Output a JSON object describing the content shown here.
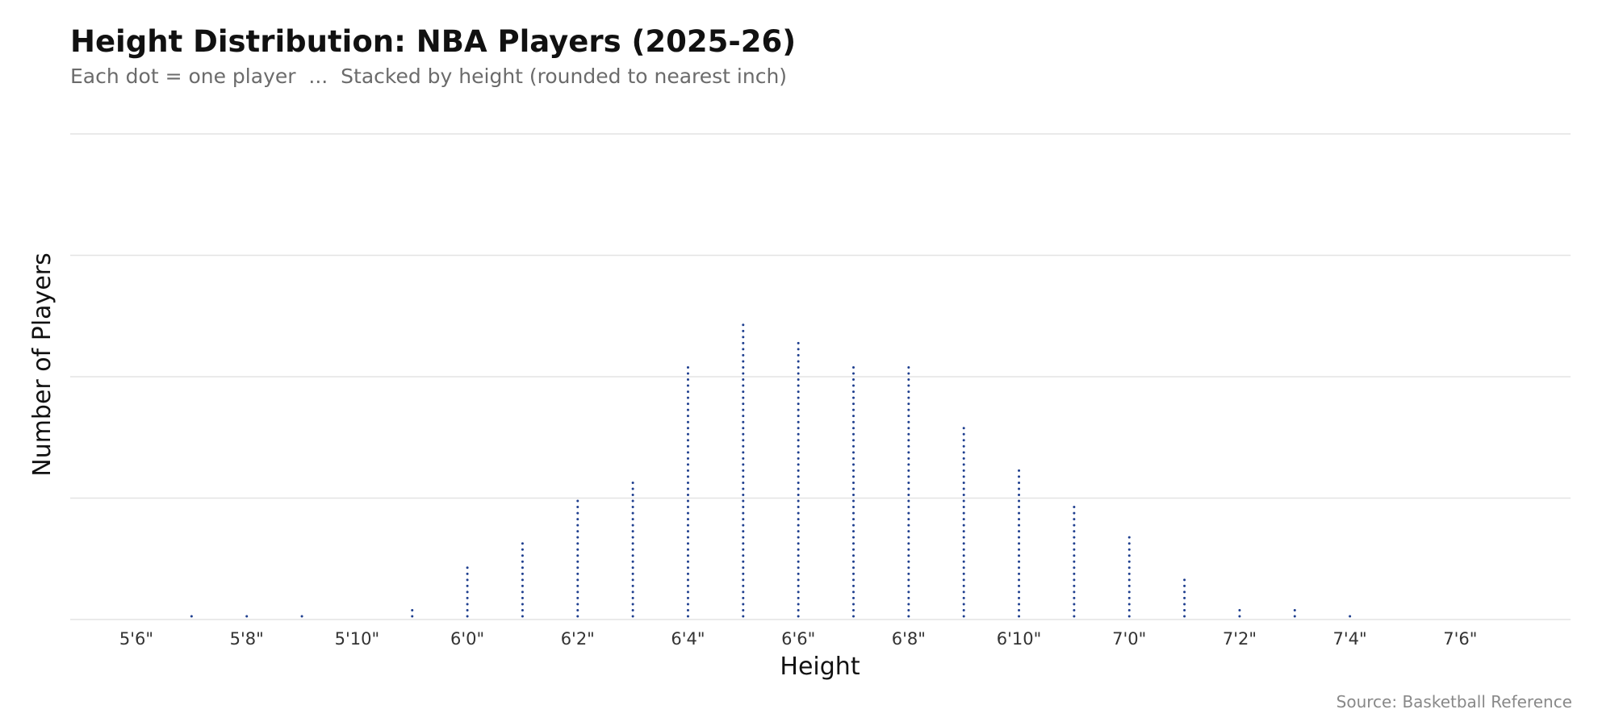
{
  "chart_data": {
    "type": "dot",
    "title": "Height Distribution: NBA Players (2025-26)",
    "subtitle": "Each dot = one player  ...  Stacked by height (rounded to nearest inch)",
    "xlabel": "Height",
    "ylabel": "Number of Players",
    "source": "Source: Basketball Reference",
    "x_ticks": [
      {
        "inches": 66,
        "label": "5'6\""
      },
      {
        "inches": 68,
        "label": "5'8\""
      },
      {
        "inches": 70,
        "label": "5'10\""
      },
      {
        "inches": 72,
        "label": "6'0\""
      },
      {
        "inches": 74,
        "label": "6'2\""
      },
      {
        "inches": 76,
        "label": "6'4\""
      },
      {
        "inches": 78,
        "label": "6'6\""
      },
      {
        "inches": 80,
        "label": "6'8\""
      },
      {
        "inches": 82,
        "label": "6'10\""
      },
      {
        "inches": 84,
        "label": "7'0\""
      },
      {
        "inches": 86,
        "label": "7'2\""
      },
      {
        "inches": 88,
        "label": "7'4\""
      },
      {
        "inches": 90,
        "label": "7'6\""
      }
    ],
    "xlim": [
      64.8,
      92
    ],
    "ylim": [
      0,
      80
    ],
    "y_gridlines": [
      0,
      20,
      40,
      60,
      80
    ],
    "grid": true,
    "dot_color": "#1f3f8f",
    "points": [
      {
        "height_in": 67,
        "count": 1
      },
      {
        "height_in": 68,
        "count": 1
      },
      {
        "height_in": 69,
        "count": 1
      },
      {
        "height_in": 71,
        "count": 2
      },
      {
        "height_in": 72,
        "count": 9
      },
      {
        "height_in": 73,
        "count": 13
      },
      {
        "height_in": 74,
        "count": 20
      },
      {
        "height_in": 75,
        "count": 23
      },
      {
        "height_in": 76,
        "count": 42
      },
      {
        "height_in": 77,
        "count": 49
      },
      {
        "height_in": 78,
        "count": 46
      },
      {
        "height_in": 79,
        "count": 42
      },
      {
        "height_in": 80,
        "count": 42
      },
      {
        "height_in": 81,
        "count": 32
      },
      {
        "height_in": 82,
        "count": 25
      },
      {
        "height_in": 83,
        "count": 19
      },
      {
        "height_in": 84,
        "count": 14
      },
      {
        "height_in": 85,
        "count": 7
      },
      {
        "height_in": 86,
        "count": 2
      },
      {
        "height_in": 87,
        "count": 2
      },
      {
        "height_in": 88,
        "count": 1
      }
    ]
  }
}
